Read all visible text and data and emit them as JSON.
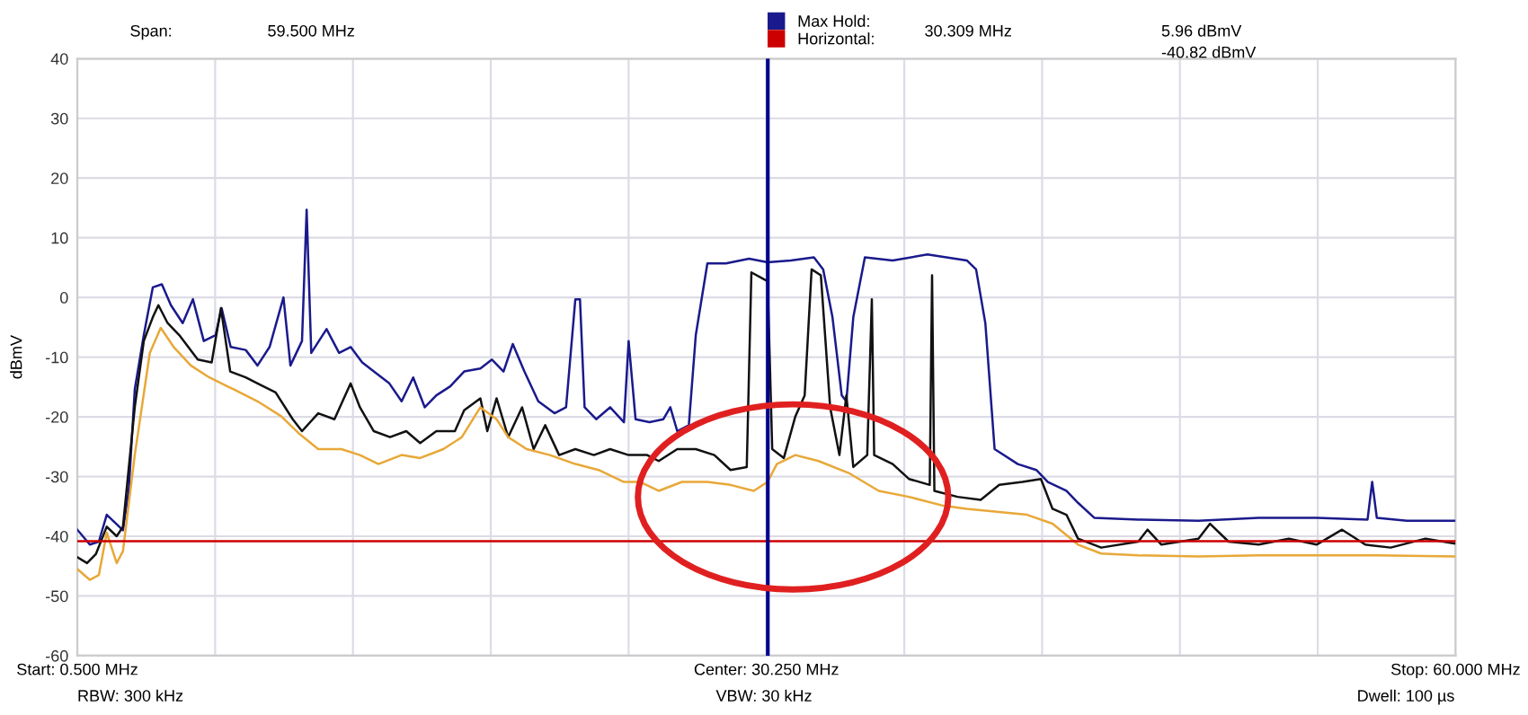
{
  "chart_data": {
    "type": "line",
    "ylabel": "dBmV",
    "xlim": [
      0.5,
      60
    ],
    "ylim": [
      -60,
      40
    ],
    "xticks": [
      {
        "value": 0.5,
        "label": "Start: 0.500 MHz"
      },
      {
        "value": 60,
        "label": "Stop: 60.000 MHz"
      },
      {
        "value": 6.45,
        "label": null
      },
      {
        "value": 12.4,
        "label": null
      },
      {
        "value": 18.35,
        "label": null
      },
      {
        "value": 24.3,
        "label": null
      },
      {
        "value": 30.25,
        "label": "Center: 30.250 MHz"
      },
      {
        "value": 36.2,
        "label": null
      },
      {
        "value": 42.15,
        "label": null
      },
      {
        "value": 48.1,
        "label": null
      },
      {
        "value": 54.05,
        "label": null
      }
    ],
    "yticks": [
      -60,
      -50,
      -40,
      -30,
      -20,
      -10,
      0,
      10,
      20,
      30,
      40
    ],
    "grid": true,
    "legend": "top",
    "marker": "none",
    "line_style": "solid",
    "series": [
      {
        "name": "Max Hold:",
        "color": "#1a1a8c",
        "x": [
          0.5,
          1.04,
          1.43,
          1.77,
          2.2,
          2.47,
          2.72,
          2.98,
          3.37,
          3.76,
          4.15,
          4.54,
          5.05,
          5.49,
          5.96,
          6.47,
          6.73,
          7.12,
          7.77,
          8.28,
          8.8,
          9.4,
          9.7,
          10.2,
          10.4,
          10.6,
          11.26,
          11.8,
          12.3,
          12.8,
          13.3,
          13.97,
          14.5,
          15.0,
          15.5,
          16.0,
          16.6,
          17.2,
          17.9,
          18.4,
          18.9,
          19.3,
          19.8,
          20.4,
          21.1,
          21.6,
          22.0,
          22.2,
          22.4,
          22.9,
          23.5,
          24.1,
          24.3,
          24.6,
          25.2,
          25.8,
          26.1,
          26.4,
          26.9,
          27.2,
          27.7,
          28.5,
          29.5,
          30.3,
          31.3,
          32.3,
          32.7,
          33.1,
          33.5,
          33.7,
          34.0,
          34.5,
          35.7,
          37.2,
          38.9,
          39.3,
          39.7,
          40.1,
          41.1,
          41.9,
          42.4,
          43.2,
          43.7,
          44.4,
          46.3,
          48.9,
          51.5,
          54.0,
          56.2,
          56.4,
          56.6,
          57.9,
          59.95
        ],
        "values": [
          -38.9,
          -41.4,
          -40.9,
          -36.4,
          -38,
          -39,
          -32.4,
          -15.4,
          -6.3,
          1.7,
          2.2,
          -1.3,
          -4.3,
          -0.3,
          -7.3,
          -6.3,
          -1.8,
          -8.3,
          -8.8,
          -11.4,
          -8.3,
          0,
          -11.4,
          -7.3,
          14.7,
          -9.3,
          -5.3,
          -9.3,
          -8.3,
          -10.9,
          -12.4,
          -14.4,
          -17.4,
          -13.4,
          -18.4,
          -16.4,
          -14.9,
          -12.4,
          -11.9,
          -10.4,
          -12.4,
          -7.8,
          -12.4,
          -17.4,
          -19.4,
          -18.4,
          -0.3,
          -0.3,
          -18.4,
          -20.4,
          -18.4,
          -20.9,
          -7.3,
          -20.4,
          -20.9,
          -20.4,
          -18.4,
          -22.4,
          -21.4,
          -6.3,
          5.7,
          5.7,
          6.5,
          5.9,
          6.2,
          6.7,
          4.7,
          -3.3,
          -16.4,
          -17.4,
          -3.3,
          6.7,
          6.2,
          7.2,
          6.2,
          4.7,
          -4.3,
          -25.4,
          -27.9,
          -28.9,
          -30.9,
          -32.4,
          -34.4,
          -36.9,
          -37.2,
          -37.4,
          -36.9,
          -36.9,
          -37.2,
          -30.9,
          -36.9,
          -37.4,
          -37.4
        ]
      },
      {
        "color": "#111111",
        "x": [
          0.5,
          0.92,
          1.3,
          1.77,
          2.2,
          2.47,
          2.98,
          3.37,
          3.76,
          4.0,
          4.4,
          4.9,
          5.7,
          6.3,
          6.7,
          7.1,
          7.77,
          8.28,
          9.06,
          9.8,
          10.2,
          10.9,
          11.6,
          12.3,
          12.7,
          13.3,
          14.0,
          14.7,
          15.3,
          16.0,
          16.8,
          17.2,
          17.9,
          18.2,
          18.6,
          19.1,
          19.7,
          20.2,
          20.7,
          21.3,
          22.0,
          22.8,
          23.5,
          24.3,
          25.1,
          25.6,
          26.4,
          27.2,
          28.0,
          28.7,
          29.4,
          29.6,
          30.3,
          30.5,
          31.0,
          31.5,
          31.9,
          32.2,
          32.6,
          33.0,
          33.4,
          33.7,
          34.0,
          34.6,
          34.8,
          34.9,
          35.7,
          36.4,
          37.3,
          37.4,
          37.5,
          38.5,
          39.5,
          40.3,
          41.3,
          42.1,
          42.6,
          43.2,
          43.7,
          44.7,
          46.3,
          46.7,
          47.3,
          48.9,
          49.4,
          50.2,
          51.5,
          52.8,
          54.0,
          55.1,
          56.1,
          57.2,
          58.7,
          59.95
        ],
        "values": [
          -43.5,
          -44.5,
          -43,
          -38.4,
          -40,
          -38.4,
          -18.4,
          -7.3,
          -3.3,
          -1.3,
          -4.3,
          -6.3,
          -10.4,
          -10.9,
          -1.8,
          -12.4,
          -13.4,
          -14.4,
          -15.9,
          -20.4,
          -22.4,
          -19.4,
          -20.4,
          -14.4,
          -18.4,
          -22.4,
          -23.4,
          -22.4,
          -24.4,
          -22.4,
          -22.4,
          -18.9,
          -16.9,
          -22.4,
          -16.9,
          -23.4,
          -18.4,
          -25.4,
          -21.4,
          -26.4,
          -25.4,
          -26.4,
          -25.4,
          -26.4,
          -26.4,
          -27.4,
          -25.4,
          -25.4,
          -26.4,
          -28.9,
          -28.4,
          4.2,
          2.7,
          -25.4,
          -26.9,
          -19.9,
          -16.4,
          4.7,
          3.7,
          -18.4,
          -26.4,
          -16.4,
          -28.4,
          -26.4,
          -0.3,
          -26.4,
          -27.9,
          -30.4,
          -31.4,
          3.7,
          -32.4,
          -33.4,
          -33.9,
          -31.4,
          -30.9,
          -30.4,
          -35.4,
          -36.4,
          -40.4,
          -41.9,
          -40.9,
          -38.9,
          -41.4,
          -40.4,
          -37.9,
          -40.9,
          -41.4,
          -40.4,
          -41.4,
          -38.9,
          -41.4,
          -41.9,
          -40.4,
          -41.2
        ]
      },
      {
        "color": "#e8a838",
        "x": [
          0.5,
          1.04,
          1.43,
          1.77,
          2.2,
          2.47,
          2.98,
          3.63,
          4.1,
          4.66,
          5.4,
          6.2,
          7.25,
          8.28,
          9.3,
          10.1,
          10.9,
          11.9,
          12.7,
          13.5,
          14.5,
          15.3,
          16.3,
          17.1,
          17.9,
          18.6,
          19.1,
          19.9,
          20.9,
          22.0,
          23.0,
          24.1,
          24.8,
          25.6,
          26.6,
          27.7,
          28.7,
          29.7,
          30.3,
          30.7,
          31.5,
          32.5,
          33.8,
          35.1,
          36.4,
          37.9,
          38.9,
          40.2,
          41.5,
          42.6,
          43.7,
          44.7,
          46.3,
          48.9,
          51.5,
          54.0,
          56.6,
          59.95
        ],
        "values": [
          -45.5,
          -47.3,
          -46.5,
          -39.4,
          -44.5,
          -42.5,
          -26.4,
          -9.3,
          -5.1,
          -8.3,
          -11.4,
          -13.4,
          -15.4,
          -17.4,
          -19.9,
          -22.9,
          -25.4,
          -25.4,
          -26.4,
          -27.9,
          -26.4,
          -26.9,
          -25.4,
          -23.4,
          -18.4,
          -20.4,
          -23.4,
          -25.4,
          -26.4,
          -27.9,
          -28.9,
          -30.9,
          -30.9,
          -32.4,
          -30.9,
          -30.9,
          -31.4,
          -32.4,
          -30.9,
          -27.9,
          -26.4,
          -27.4,
          -29.4,
          -32.4,
          -33.4,
          -34.9,
          -35.4,
          -35.9,
          -36.4,
          -37.9,
          -41.4,
          -42.9,
          -43.2,
          -43.4,
          -43.2,
          -43.2,
          -43.2,
          -43.4
        ]
      },
      {
        "name": "Horizontal:",
        "color": "#cc0000",
        "x": [
          0.5,
          60
        ],
        "values": [
          -40.82,
          -40.82
        ]
      }
    ],
    "ref_lines": [
      {
        "axis": "x",
        "value": 30.309,
        "color": "#00008b"
      }
    ],
    "annotations": [
      "Span:",
      "59.500 MHz",
      "RBW: 300 kHz",
      "VBW: 30 kHz",
      "Dwell: 100 µs",
      "5.96 dBmV",
      "-40.82 dBmV",
      "30.309 MHz"
    ]
  }
}
